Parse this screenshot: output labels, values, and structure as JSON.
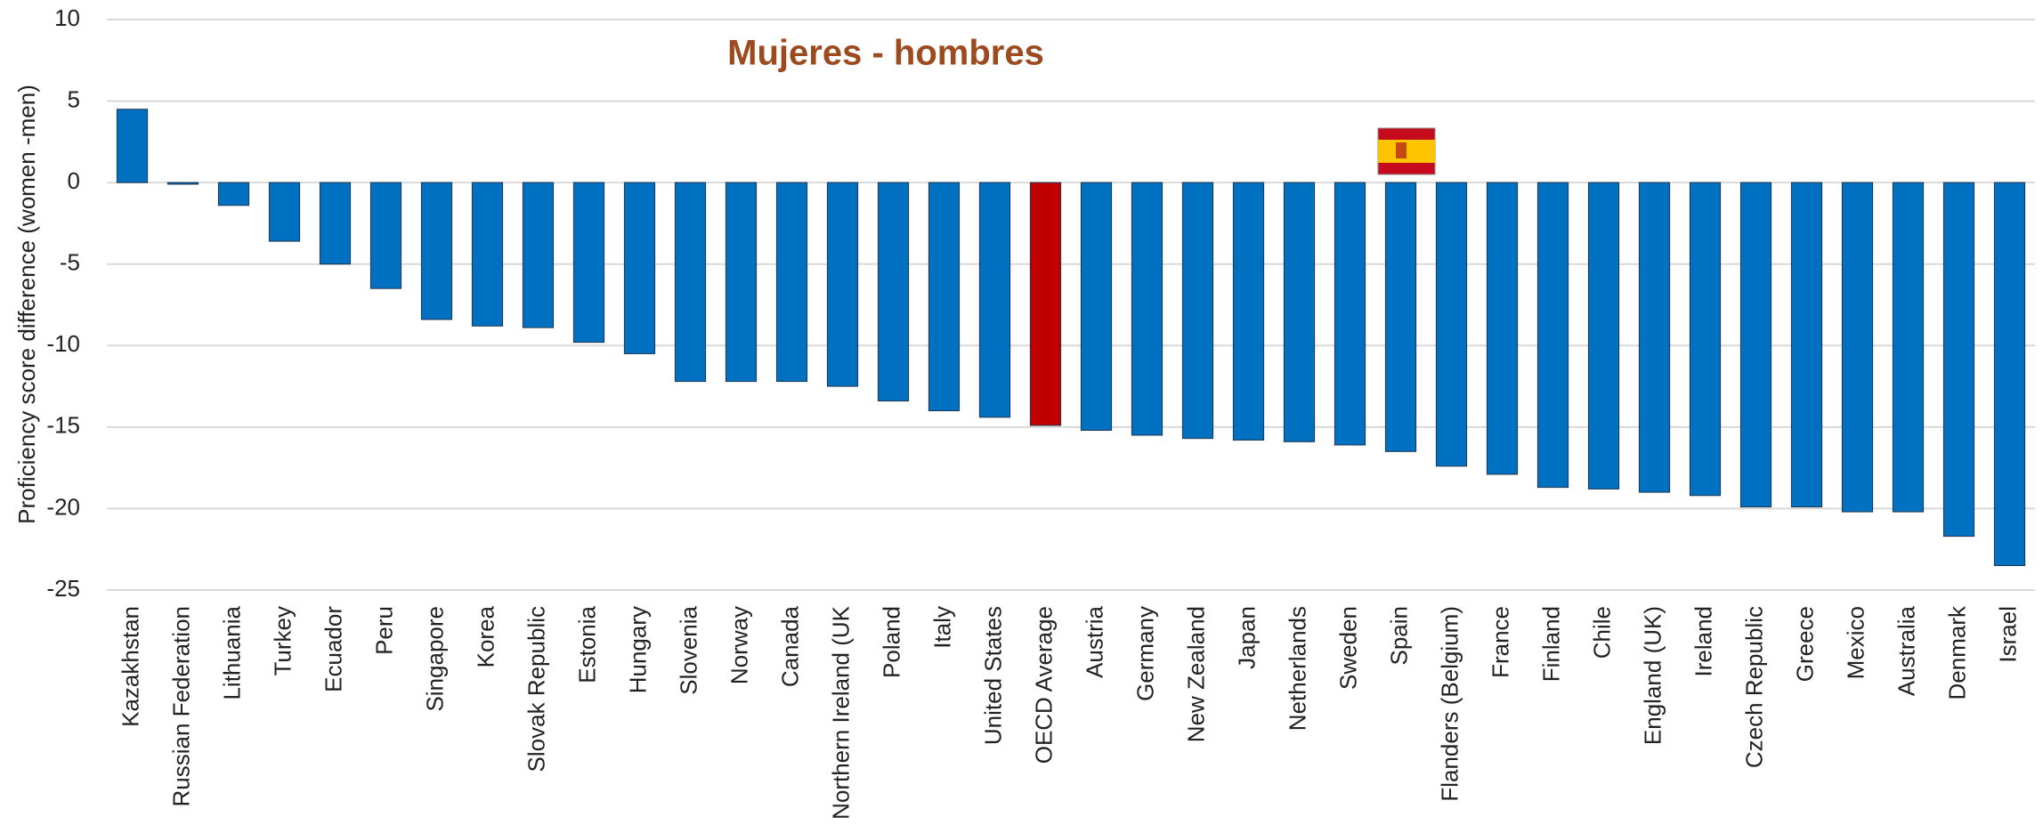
{
  "chart_data": {
    "type": "bar",
    "title": "Mujeres - hombres",
    "y_label": "Proficiency score difference (women -men)",
    "categories": [
      "Kazakhstan",
      "Russian Federation",
      "Lithuania",
      "Turkey",
      "Ecuador",
      "Peru",
      "Singapore",
      "Korea",
      "Slovak Republic",
      "Estonia",
      "Hungary",
      "Slovenia",
      "Norway",
      "Canada",
      "Northern Ireland (UK",
      "Poland",
      "Italy",
      "United States",
      "OECD Average",
      "Austria",
      "Germany",
      "New Zealand",
      "Japan",
      "Netherlands",
      "Sweden",
      "Spain",
      "Flanders (Belgium)",
      "France",
      "Finland",
      "Chile",
      "England (UK)",
      "Ireland",
      "Czech Republic",
      "Greece",
      "Mexico",
      "Australia",
      "Denmark",
      "Israel"
    ],
    "values": [
      4.5,
      -0.1,
      -1.4,
      -3.6,
      -5.0,
      -6.5,
      -8.4,
      -8.8,
      -8.9,
      -9.8,
      -10.5,
      -12.2,
      -12.2,
      -12.2,
      -12.5,
      -13.4,
      -14.0,
      -14.4,
      -14.9,
      -15.2,
      -15.5,
      -15.7,
      -15.8,
      -15.9,
      -16.1,
      -16.5,
      -17.4,
      -17.9,
      -18.7,
      -18.8,
      -19.0,
      -19.2,
      -19.9,
      -19.9,
      -20.2,
      -20.2,
      -21.7,
      -23.5
    ],
    "color": "#0070c0",
    "highlight": {
      "OECD Average": "#c00000"
    },
    "ylim": [
      -25,
      10
    ],
    "yticks": [
      -25,
      -20,
      -15,
      -10,
      -5,
      0,
      5,
      10
    ],
    "grid": true
  }
}
